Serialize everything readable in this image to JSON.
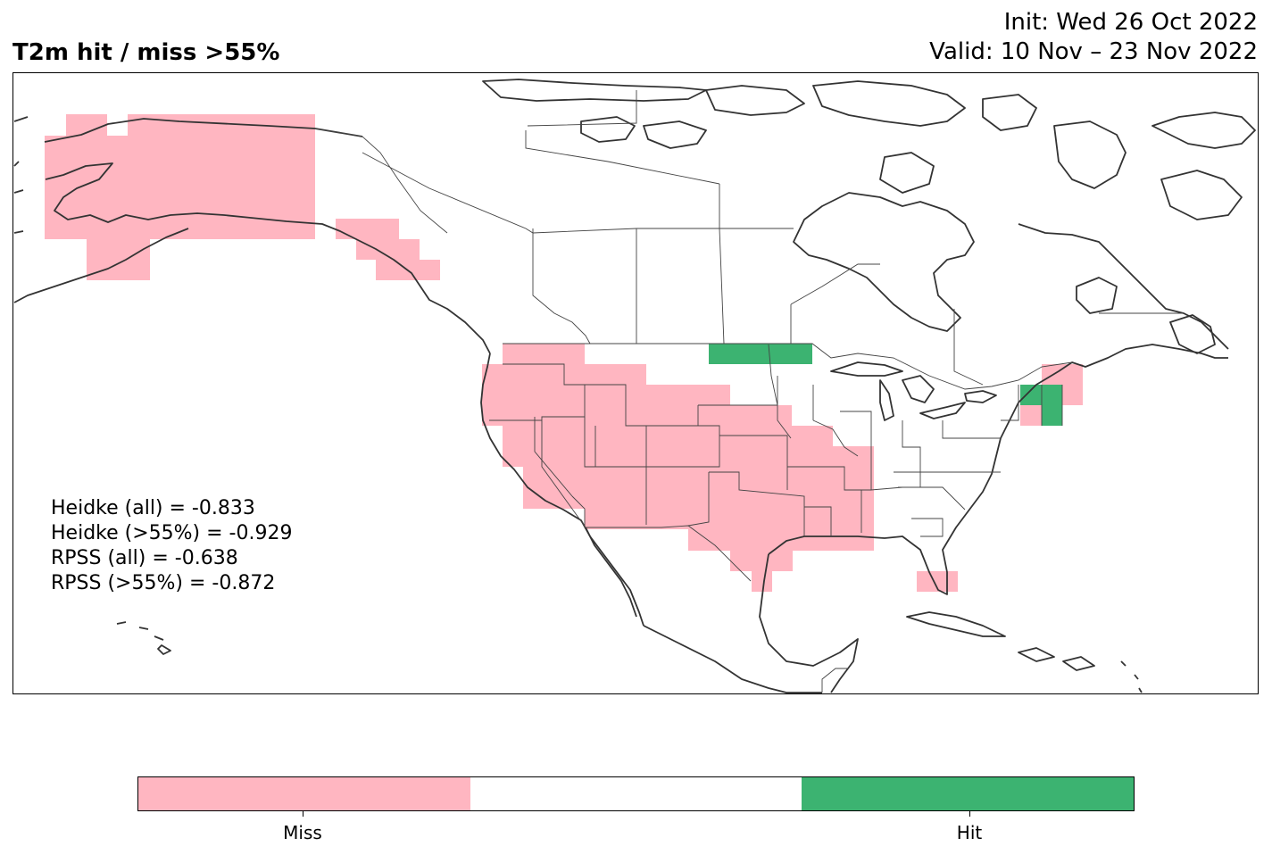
{
  "title": "T2m hit / miss  >55%",
  "init_label": "Init: Wed 26 Oct 2022",
  "valid_label": "Valid: 10 Nov – 23 Nov 2022",
  "scores": [
    "Heidke (all) = -0.833",
    "Heidke (>55%) = -0.929",
    "RPSS (all) = -0.638",
    "RPSS (>55%) = -0.872"
  ],
  "colorbar": {
    "categories": [
      "Miss",
      "",
      "Hit"
    ],
    "colors": [
      "#ffb6c1",
      "#ffffff",
      "#3cb371"
    ],
    "tick_labels": [
      "Miss",
      "Hit"
    ]
  },
  "colors": {
    "miss": "#ffb6c1",
    "hit": "#3cb371",
    "coast": "#333333",
    "border": "#444444"
  }
}
